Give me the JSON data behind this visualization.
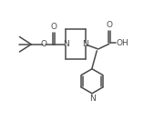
{
  "bg_color": "#ffffff",
  "line_color": "#4a4a4a",
  "line_width": 1.1,
  "font_size": 6.5,
  "figsize": [
    1.69,
    1.32
  ],
  "dpi": 100,
  "xlim": [
    0,
    10.5
  ],
  "ylim": [
    1.5,
    10.2
  ]
}
